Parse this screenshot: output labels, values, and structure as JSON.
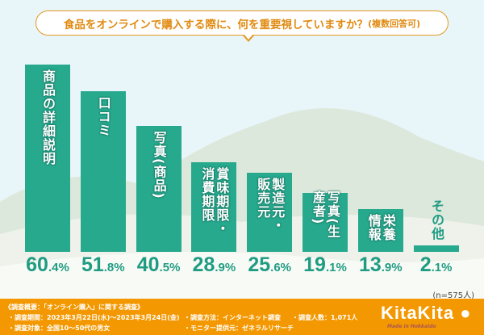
{
  "title": {
    "main": "食品をオンラインで購入する際に、何を重要視していますか？",
    "sub": "(複数回答可)"
  },
  "chart_data": {
    "type": "bar",
    "title": "食品をオンラインで購入する際に、何を重要視していますか？(複数回答可)",
    "categories": [
      "商品の詳細説明",
      "口コミ",
      "写真(商品)",
      "賞味期限・消費期限",
      "製造元・販売元",
      "写真(生産者)",
      "栄養情報",
      "その他"
    ],
    "values": [
      60.4,
      51.8,
      40.5,
      28.9,
      25.6,
      19.1,
      13.9,
      2.1
    ],
    "value_labels": [
      {
        "i": "60",
        "d": ".4%"
      },
      {
        "i": "51",
        "d": ".8%"
      },
      {
        "i": "40",
        "d": ".5%"
      },
      {
        "i": "28",
        "d": ".9%"
      },
      {
        "i": "25",
        "d": ".6%"
      },
      {
        "i": "19",
        "d": ".1%"
      },
      {
        "i": "13",
        "d": ".9%"
      },
      {
        "i": "2",
        "d": ".1%"
      }
    ],
    "unit": "%",
    "ylim": [
      0,
      60.4
    ],
    "grid": false,
    "bar_color": "#27a98e"
  },
  "sample_note": "(n=575人)",
  "footer": {
    "heading": "《調査概要：「オンライン購入」に関する調査》",
    "period": "・調査期間：2023年3月22日(水)〜2023年3月24日(金)",
    "target": "・調査対象：全国10〜50代の男女",
    "method": "・調査方法：インターネット調査",
    "provider": "・モニター提供元：ゼネラルリサーチ",
    "count": "・調査人数：1,071人",
    "logo": "KitaKita",
    "logo_sub": "Made in Hokkaido",
    "color": "#f39800"
  }
}
